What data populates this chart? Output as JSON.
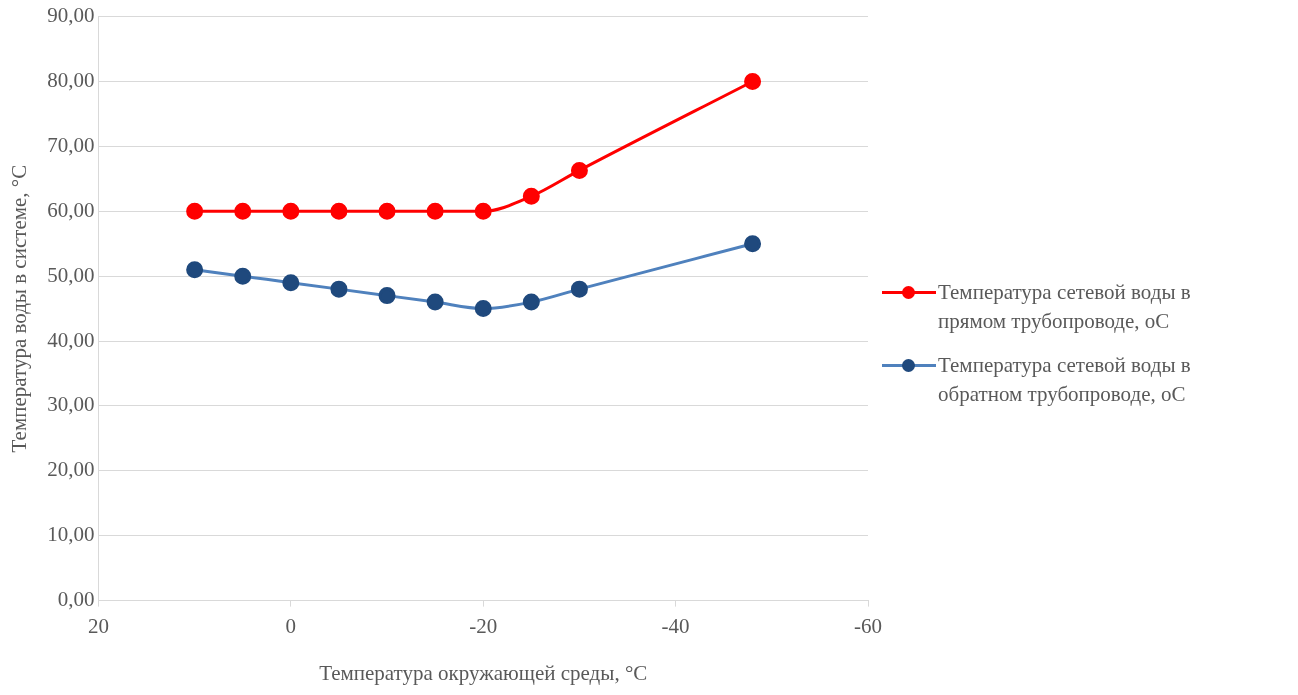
{
  "chart_data": {
    "type": "line",
    "xlabel": "Температура окружающей среды, °C",
    "ylabel": "Температура воды в системе, °C",
    "x": [
      10,
      5,
      0,
      -5,
      -10,
      -15,
      -20,
      -25,
      -30,
      -48
    ],
    "xlim": [
      20,
      -60
    ],
    "xticks": [
      20,
      0,
      -20,
      -40,
      -60
    ],
    "ylim": [
      0,
      90
    ],
    "yticks": [
      {
        "value": 0,
        "label": "0,00"
      },
      {
        "value": 10,
        "label": "10,00"
      },
      {
        "value": 20,
        "label": "20,00"
      },
      {
        "value": 30,
        "label": "30,00"
      },
      {
        "value": 40,
        "label": "40,00"
      },
      {
        "value": 50,
        "label": "50,00"
      },
      {
        "value": 60,
        "label": "60,00"
      },
      {
        "value": 70,
        "label": "70,00"
      },
      {
        "value": 80,
        "label": "80,00"
      },
      {
        "value": 90,
        "label": "90,00"
      }
    ],
    "grid": "y",
    "legend": "right",
    "marker": "circle",
    "line_style": "solid",
    "series": [
      {
        "name": "Температура сетевой воды в прямом трубопроводе, oC",
        "color": "#ff0000",
        "values": [
          60,
          60,
          60,
          60,
          60,
          60,
          60,
          62.3,
          66.3,
          80
        ]
      },
      {
        "name": "Температура сетевой воды в обратном трубопроводе, oC",
        "color": "#4f81bd",
        "colors": [
          "#1f497d",
          "#1f497d",
          "#1f497d",
          "#1f497d",
          "#1f497d",
          "#1f497d",
          "#1f497d",
          "#1f497d",
          "#1f497d",
          "#1f497d"
        ],
        "values": [
          51,
          50,
          49,
          48,
          47,
          46,
          45,
          46,
          48,
          55
        ]
      }
    ]
  }
}
